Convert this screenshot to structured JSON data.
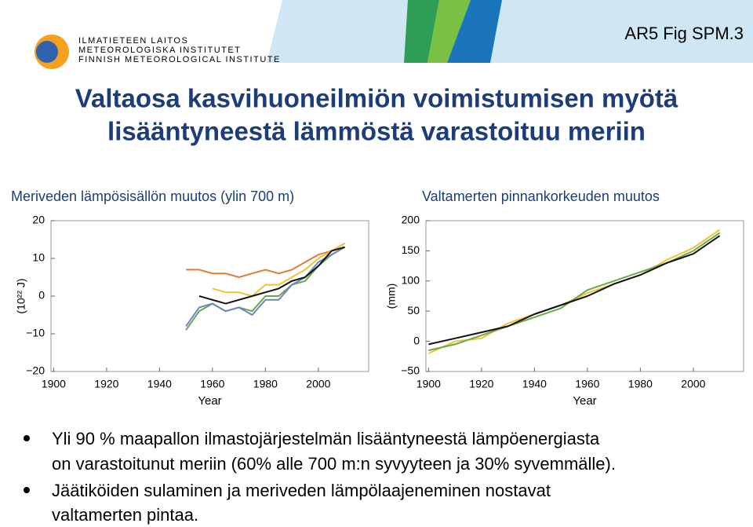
{
  "slide": {
    "logo": [
      "ILMATIETEEN LAITOS",
      "METEOROLOGISKA INSTITUTET",
      "FINNISH METEOROLOGICAL INSTITUTE"
    ],
    "tag": "AR5 Fig SPM.3",
    "title": [
      "Valtaosa kasvihuoneilmiön voimistumisen myötä",
      "lisääntyneestä lämmöstä varastoituu meriin"
    ],
    "bullets": [
      [
        "Yli 90 % maapallon ilmastojärjestelmän lisääntyneestä lämpöenergiasta",
        "on varastoitunut meriin (60% alle 700 m:n syvyyteen ja 30% syvemmälle)."
      ],
      [
        "Jäätiköiden sulaminen ja meriveden lämpölaajeneminen nostavat",
        "valtamerten pintaa."
      ]
    ]
  },
  "chart_data": [
    {
      "type": "line",
      "title": "Meriveden lämpösisällön muutos (ylin 700 m)",
      "xlabel": "Year",
      "ylabel": "(10²² J)",
      "xlim": [
        1899,
        2019
      ],
      "xticks": [
        1900,
        1920,
        1940,
        1960,
        1980,
        2000
      ],
      "ylim": [
        -20,
        20
      ],
      "yticks": [
        {
          "value": -20,
          "label": "−20"
        },
        {
          "value": -10,
          "label": "−10"
        },
        0,
        10,
        20
      ],
      "x": [
        1950,
        1955,
        1960,
        1965,
        1970,
        1975,
        1980,
        1985,
        1990,
        1995,
        2000,
        2005,
        2010
      ],
      "series": [
        {
          "color": "#6aa84f",
          "values": [
            -9,
            -4,
            -2,
            -4,
            -3,
            -4,
            0,
            0,
            3,
            4,
            8,
            11,
            13
          ]
        },
        {
          "color": "#e07b39",
          "values": [
            7,
            7,
            6,
            6,
            5,
            6,
            7,
            6,
            7,
            9,
            11,
            12,
            14
          ]
        },
        {
          "color": "#6b86c4",
          "values": [
            -8,
            -3,
            -2,
            -4,
            -3,
            -5,
            -1,
            -1,
            3,
            5,
            9,
            11,
            13
          ]
        },
        {
          "color": "#f1c232",
          "values": [
            null,
            null,
            2,
            1,
            1,
            0,
            3,
            3,
            5,
            7,
            10,
            12,
            14
          ]
        },
        {
          "color": "#111111",
          "values": [
            null,
            0,
            -1,
            -2,
            -1,
            0,
            1,
            2,
            4,
            5,
            8,
            12,
            13
          ]
        }
      ]
    },
    {
      "type": "line",
      "title": "Valtamerten pinnankorkeuden muutos",
      "xlabel": "Year",
      "ylabel": "(mm)",
      "xlim": [
        1899,
        2019
      ],
      "xticks": [
        1900,
        1920,
        1940,
        1960,
        1980,
        2000
      ],
      "ylim": [
        -50,
        200
      ],
      "yticks": [
        {
          "value": -50,
          "label": "−50"
        },
        0,
        50,
        100,
        150,
        200
      ],
      "x": [
        1900,
        1910,
        1920,
        1930,
        1940,
        1950,
        1960,
        1970,
        1980,
        1990,
        2000,
        2010
      ],
      "series": [
        {
          "color": "#f1c232",
          "values": [
            -20,
            0,
            5,
            30,
            45,
            60,
            80,
            95,
            110,
            135,
            155,
            185
          ]
        },
        {
          "color": "#6aa84f",
          "values": [
            -15,
            -5,
            10,
            25,
            40,
            55,
            85,
            100,
            115,
            130,
            150,
            180
          ]
        },
        {
          "color": "#111111",
          "values": [
            -5,
            5,
            15,
            25,
            45,
            60,
            75,
            95,
            110,
            130,
            145,
            175
          ]
        }
      ]
    }
  ]
}
